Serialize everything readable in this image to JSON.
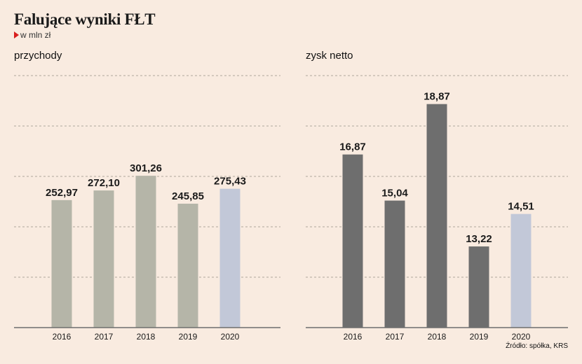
{
  "title": "Falujące wyniki FŁT",
  "subtitle": "w mln zł",
  "source": "Źródło: spółka, KRS",
  "colors": {
    "background": "#f9ebe0",
    "revenue_bar": "#b5b5a8",
    "profit_bar": "#6e6e6e",
    "highlight_bar": "#c2c8d8",
    "gridline": "#b0a79c",
    "axis": "#6e6e6e"
  },
  "chart_data": [
    {
      "type": "bar",
      "title": "przychody",
      "categories": [
        "2016",
        "2017",
        "2018",
        "2019",
        "2020"
      ],
      "values": [
        252.97,
        272.1,
        301.26,
        245.85,
        275.43
      ],
      "value_labels": [
        "252,97",
        "272,10",
        "301,26",
        "245,85",
        "275,43"
      ],
      "ylim": [
        0,
        500
      ],
      "grid": true,
      "highlight_index": 4
    },
    {
      "type": "bar",
      "title": "zysk netto",
      "categories": [
        "2016",
        "2017",
        "2018",
        "2019",
        "2020"
      ],
      "values": [
        16.87,
        15.04,
        18.87,
        13.22,
        14.51
      ],
      "value_labels": [
        "16,87",
        "15,04",
        "18,87",
        "13,22",
        "14,51"
      ],
      "ylim": [
        10,
        20
      ],
      "grid": true,
      "highlight_index": 4
    }
  ]
}
